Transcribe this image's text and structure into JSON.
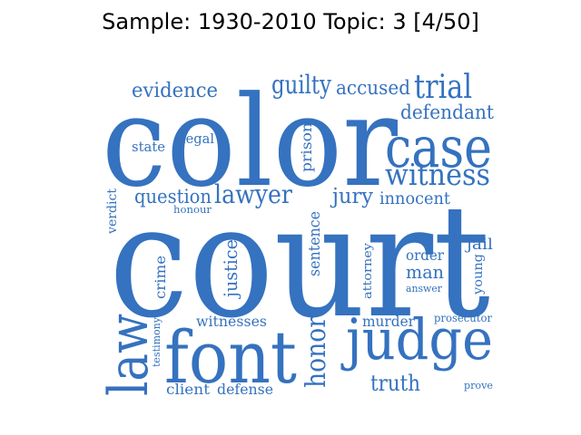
{
  "title": "Sample: 1930-2010 Topic: 3 [4/50]",
  "color": "#3572bf",
  "words": [
    {
      "id": "court",
      "text": "court"
    },
    {
      "id": "color",
      "text": "color"
    },
    {
      "id": "case",
      "text": "case"
    },
    {
      "id": "judge",
      "text": "judge"
    },
    {
      "id": "font",
      "text": "font"
    },
    {
      "id": "law",
      "text": "law"
    },
    {
      "id": "witness",
      "text": "witness"
    },
    {
      "id": "trial",
      "text": "trial"
    },
    {
      "id": "lawyer",
      "text": "lawyer"
    },
    {
      "id": "guilty",
      "text": "guilty"
    },
    {
      "id": "accused",
      "text": "accused"
    },
    {
      "id": "evidence",
      "text": "evidence"
    },
    {
      "id": "defendant",
      "text": "defendant"
    },
    {
      "id": "question",
      "text": "question"
    },
    {
      "id": "jury",
      "text": "jury"
    },
    {
      "id": "innocent",
      "text": "innocent"
    },
    {
      "id": "honor",
      "text": "honor"
    },
    {
      "id": "truth",
      "text": "truth"
    },
    {
      "id": "justice",
      "text": "justice"
    },
    {
      "id": "witnesses",
      "text": "witnesses"
    },
    {
      "id": "murder",
      "text": "murder"
    },
    {
      "id": "man",
      "text": "man"
    },
    {
      "id": "order",
      "text": "order"
    },
    {
      "id": "jail",
      "text": "jail"
    },
    {
      "id": "prison",
      "text": "prison"
    },
    {
      "id": "legal",
      "text": "legal"
    },
    {
      "id": "state",
      "text": "state"
    },
    {
      "id": "sentence",
      "text": "sentence"
    },
    {
      "id": "crime",
      "text": "crime"
    },
    {
      "id": "client",
      "text": "client"
    },
    {
      "id": "defense",
      "text": "defense"
    },
    {
      "id": "verdict",
      "text": "verdict"
    },
    {
      "id": "attorney",
      "text": "attorney"
    },
    {
      "id": "young",
      "text": "young"
    },
    {
      "id": "prosecutor",
      "text": "prosecutor"
    },
    {
      "id": "testimony",
      "text": "testimony"
    },
    {
      "id": "honour",
      "text": "honour"
    },
    {
      "id": "answer",
      "text": "answer"
    },
    {
      "id": "prove",
      "text": "prove"
    }
  ]
}
